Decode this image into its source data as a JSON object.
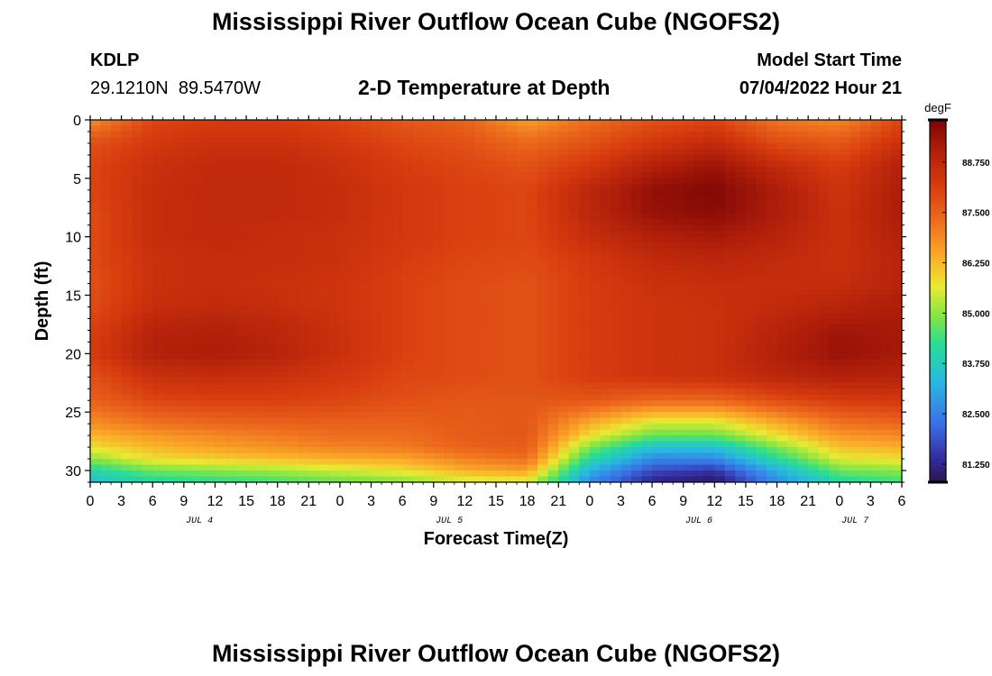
{
  "page": {
    "title": "Mississippi River Outflow Ocean Cube (NGOFS2)",
    "title_repeat": "Mississippi River Outflow Ocean Cube (NGOFS2)",
    "station_id": "KDLP",
    "station_coords": "29.1210N  89.5470W",
    "plot_subtitle": "2-D Temperature at Depth",
    "model_label": "Model Start Time",
    "model_time": "07/04/2022 Hour 21"
  },
  "chart_data": {
    "type": "heatmap",
    "title": "2-D Temperature at Depth",
    "xlabel": "Forecast Time(Z)",
    "ylabel": "Depth (ft)",
    "ylim": [
      0,
      31
    ],
    "y_inverted": true,
    "y_ticks": [
      0,
      5,
      10,
      15,
      20,
      25,
      30
    ],
    "x_range_hours": [
      0,
      78
    ],
    "x_tick_labels": [
      "0",
      "3",
      "6",
      "9",
      "12",
      "15",
      "18",
      "21",
      "0",
      "3",
      "6",
      "9",
      "12",
      "15",
      "18",
      "21",
      "0",
      "3",
      "6",
      "9",
      "12",
      "15",
      "18",
      "21",
      "0",
      "3",
      "6"
    ],
    "date_labels": [
      {
        "label": "JUL 4",
        "hour": 10.5
      },
      {
        "label": "JUL 5",
        "hour": 34.5
      },
      {
        "label": "JUL 6",
        "hour": 58.5
      },
      {
        "label": "JUL 7",
        "hour": 73.5
      }
    ],
    "colorbar": {
      "unit": "degF",
      "min": 80.8,
      "max": 89.8,
      "ticks": [
        81.25,
        82.5,
        83.75,
        85.0,
        86.25,
        87.5,
        88.75
      ],
      "tick_labels": [
        "81.250",
        "82.500",
        "83.750",
        "85.000",
        "86.250",
        "87.500",
        "88.750"
      ]
    },
    "grid_x_hours": [
      0,
      6,
      12,
      18,
      24,
      30,
      36,
      42,
      48,
      54,
      60,
      66,
      72,
      78
    ],
    "grid_y_depths": [
      0,
      2,
      4,
      6,
      8,
      10,
      12,
      14,
      16,
      18,
      20,
      22,
      24,
      26,
      27,
      28,
      29,
      30,
      31
    ],
    "values_degF": [
      [
        86.8,
        88.0,
        88.2,
        88.2,
        88.0,
        87.7,
        87.5,
        86.6,
        87.3,
        87.8,
        88.0,
        87.2,
        86.9,
        88.0
      ],
      [
        87.8,
        88.3,
        88.5,
        88.5,
        88.3,
        88.0,
        87.8,
        87.4,
        87.8,
        88.3,
        88.7,
        87.9,
        87.7,
        88.5
      ],
      [
        88.0,
        88.5,
        88.7,
        88.7,
        88.5,
        88.2,
        88.0,
        87.8,
        88.3,
        89.0,
        89.4,
        88.7,
        88.2,
        89.0
      ],
      [
        88.0,
        88.6,
        88.7,
        88.7,
        88.6,
        88.3,
        88.1,
        88.0,
        88.8,
        89.5,
        89.7,
        89.1,
        88.4,
        89.1
      ],
      [
        87.9,
        88.6,
        88.7,
        88.7,
        88.6,
        88.3,
        88.1,
        88.0,
        88.8,
        89.4,
        89.6,
        89.1,
        88.5,
        89.1
      ],
      [
        87.9,
        88.6,
        88.7,
        88.6,
        88.5,
        88.3,
        88.1,
        88.0,
        88.6,
        89.0,
        89.2,
        88.9,
        88.5,
        89.0
      ],
      [
        87.9,
        88.5,
        88.6,
        88.6,
        88.5,
        88.2,
        88.0,
        87.9,
        88.3,
        88.7,
        88.8,
        88.7,
        88.5,
        88.9
      ],
      [
        87.8,
        88.5,
        88.6,
        88.5,
        88.4,
        88.1,
        87.9,
        87.8,
        88.2,
        88.5,
        88.6,
        88.6,
        88.6,
        88.9
      ],
      [
        87.9,
        88.6,
        88.7,
        88.6,
        88.4,
        88.1,
        87.9,
        87.8,
        88.2,
        88.4,
        88.5,
        88.7,
        88.9,
        89.1
      ],
      [
        88.1,
        88.9,
        89.0,
        88.8,
        88.5,
        88.1,
        87.9,
        87.8,
        88.2,
        88.4,
        88.5,
        88.9,
        89.3,
        89.2
      ],
      [
        88.2,
        89.0,
        89.1,
        88.9,
        88.5,
        88.1,
        87.9,
        87.8,
        88.2,
        88.4,
        88.5,
        89.0,
        89.4,
        89.2
      ],
      [
        87.8,
        88.5,
        88.6,
        88.5,
        88.3,
        88.0,
        87.9,
        87.8,
        88.2,
        88.4,
        88.5,
        88.8,
        89.0,
        88.9
      ],
      [
        87.5,
        88.0,
        88.1,
        88.1,
        88.0,
        87.8,
        87.7,
        87.7,
        87.7,
        87.4,
        87.4,
        87.9,
        88.2,
        88.3
      ],
      [
        86.8,
        87.2,
        87.4,
        87.5,
        87.5,
        87.5,
        87.6,
        87.7,
        86.4,
        85.5,
        85.5,
        86.4,
        87.2,
        87.4
      ],
      [
        86.3,
        86.7,
        86.9,
        87.1,
        87.3,
        87.3,
        87.6,
        87.7,
        85.8,
        84.7,
        84.7,
        85.8,
        86.7,
        86.9
      ],
      [
        85.8,
        86.3,
        86.6,
        86.8,
        87.0,
        87.1,
        87.5,
        87.6,
        84.9,
        83.5,
        83.5,
        84.9,
        86.2,
        86.4
      ],
      [
        85.0,
        85.8,
        86.0,
        86.2,
        86.4,
        86.5,
        87.0,
        87.3,
        84.1,
        82.6,
        82.6,
        84.1,
        85.6,
        85.8
      ],
      [
        84.0,
        84.8,
        85.0,
        85.2,
        85.5,
        85.8,
        86.4,
        86.6,
        83.2,
        81.8,
        81.5,
        83.2,
        84.8,
        85.0
      ],
      [
        83.4,
        84.0,
        84.2,
        84.4,
        84.7,
        84.9,
        85.4,
        85.5,
        82.6,
        81.2,
        80.9,
        82.6,
        84.0,
        84.4
      ]
    ]
  }
}
